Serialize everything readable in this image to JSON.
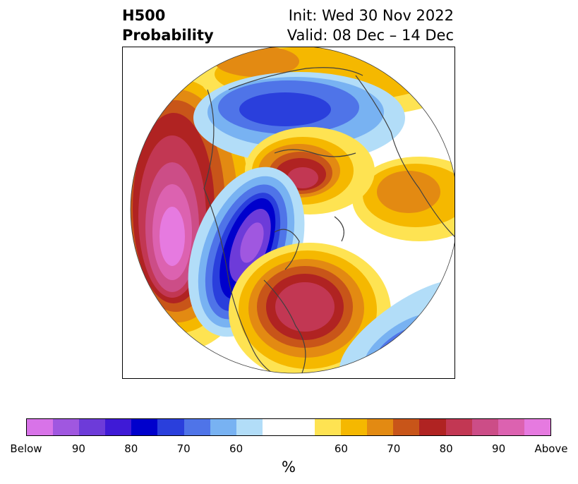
{
  "title": {
    "left_line1": "H500",
    "left_line2": "Probability",
    "right_line1": "Init: Wed 30 Nov 2022",
    "right_line2": "Valid: 08 Dec – 14 Dec"
  },
  "colorbar": {
    "colors": [
      "#d873e8",
      "#a057e0",
      "#6d3bd9",
      "#3f1ad6",
      "#0000cc",
      "#2a3fdc",
      "#4f74e8",
      "#78b2f2",
      "#b2ddf8",
      "#ffffff",
      "#fee352",
      "#f5b800",
      "#e38a12",
      "#c85519",
      "#b02322",
      "#c23753",
      "#cc4d87",
      "#dc62b0",
      "#e67ae0"
    ],
    "ticks": [
      "Below",
      "90",
      "80",
      "70",
      "60",
      "60",
      "70",
      "80",
      "90",
      "Above"
    ],
    "unit": "%"
  }
}
